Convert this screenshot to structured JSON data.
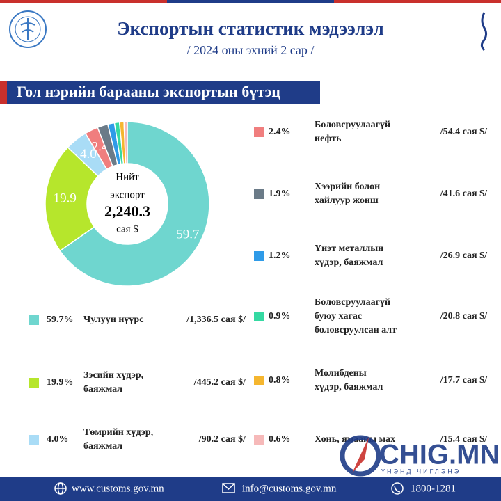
{
  "header": {
    "title": "Экспортын статистик мэдээлэл",
    "subtitle": "/ 2024 оны эхний 2 сар /",
    "banner": "Гол нэрийн барааны экспортын бүтэц"
  },
  "chart_data": {
    "type": "donut",
    "center": {
      "lines": [
        "Нийт",
        "экспорт"
      ],
      "total": {
        "value": 2240.3,
        "label": "2,240.3"
      },
      "unit": "сая $"
    },
    "categories": [
      [
        "Чулуун нүүрс"
      ],
      [
        "Зэсийн хүдэр,",
        "баяжмал"
      ],
      [
        "Төмрийн хүдэр,",
        "баяжмал"
      ],
      [
        "Боловсруулаагүй",
        "нефть"
      ],
      [
        "Хээрийн болон",
        "хайлуур жонш"
      ],
      [
        "Үнэт металлын",
        "хүдэр, баяжмал"
      ],
      [
        "Боловсруулаагүй",
        "буюу хагас",
        "боловсруулсан алт"
      ],
      [
        "Молибдены",
        "хүдэр, баяжмал"
      ],
      [
        "Хонь, ямааны мах"
      ]
    ],
    "values": [
      59.7,
      19.9,
      4.0,
      2.4,
      1.9,
      1.2,
      0.9,
      0.8,
      0.6
    ],
    "value_labels": [
      "59.7%",
      "19.9%",
      "4.0%",
      "2.4%",
      "1.9%",
      "1.2%",
      "0.9%",
      "0.8%",
      "0.6%"
    ],
    "slice_labels": [
      "59.7",
      "19.9",
      "4.0",
      "2.4",
      null,
      null,
      null,
      null,
      null
    ],
    "amount_labels": [
      "/1,336.5 сая $/",
      "/445.2 сая $/",
      "/90.2 сая $/",
      "/54.4 сая $/",
      "/41.6 сая $/",
      "/26.9 сая $/",
      "/20.8 сая $/",
      "/17.7 сая $/",
      "/15.4 сая $/"
    ],
    "colors": [
      "#6fd6cf",
      "#b6e62c",
      "#a9dcf6",
      "#f07e7e",
      "#6b7b88",
      "#2f9be8",
      "#35d9a2",
      "#f5b62f",
      "#f6b9b9"
    ]
  },
  "footer": {
    "website": "www.customs.gov.mn",
    "email": "info@customs.gov.mn",
    "phone": "1800-1281"
  },
  "watermark": {
    "brand": "CHIG.MN",
    "slogan": "ҮНЭНД ЧИГЛЭНЭ"
  }
}
